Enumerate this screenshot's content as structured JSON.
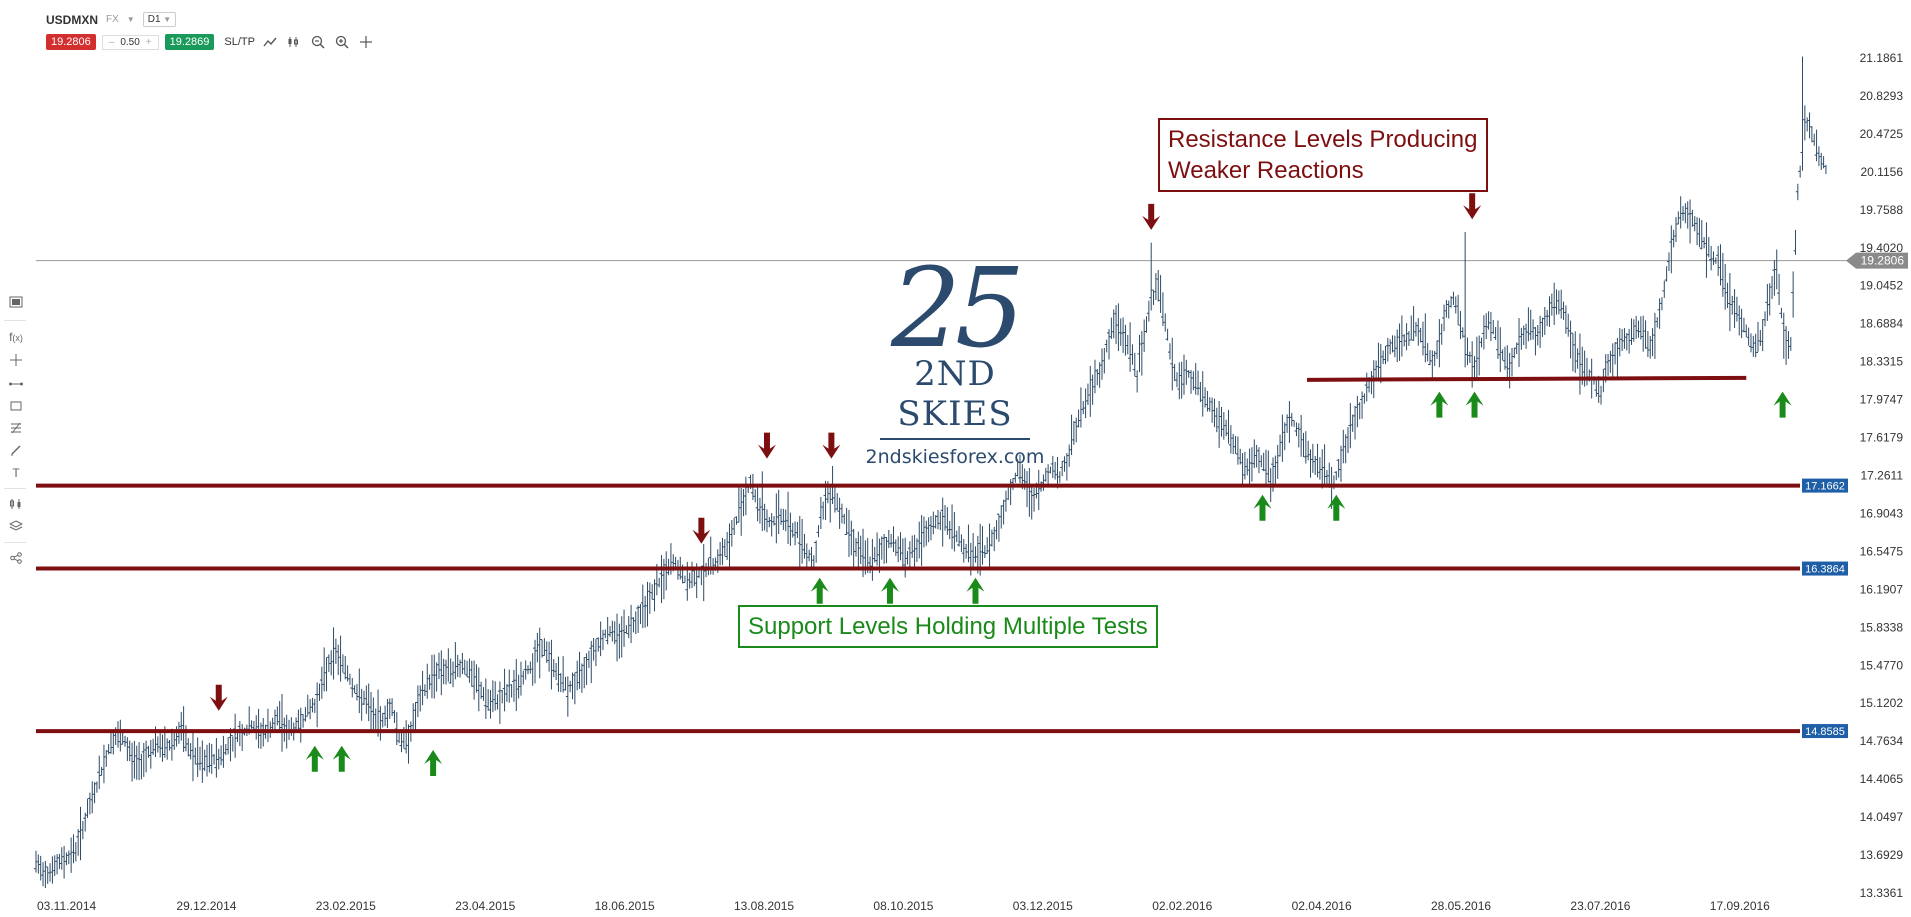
{
  "header": {
    "symbol": "USDMXN",
    "market": "FX",
    "timeframe": "D1",
    "bid": "19.2806",
    "spread": "0.50",
    "ask": "19.2869",
    "sltp": "SL/TP",
    "minus": "–",
    "plus": "+"
  },
  "toolbar_icons": [
    "line-chart-icon",
    "candles-icon",
    "zoom-out-icon",
    "zoom-in-icon",
    "crosshair-icon"
  ],
  "left_tools": [
    "layout-icon",
    "function-icon",
    "crosshair-icon",
    "trend-line-icon",
    "rectangle-icon",
    "fibonacci-icon",
    "pencil-icon",
    "text-icon",
    "indicator-icon",
    "layers-icon",
    "share-icon"
  ],
  "annotations": {
    "resistance_line1": "Resistance Levels Producing",
    "resistance_line2": "Weaker Reactions",
    "support": "Support Levels Holding Multiple Tests"
  },
  "logo": {
    "mark": "25",
    "name": "2ND SKIES",
    "url": "2ndskiesforex.com"
  },
  "colors": {
    "resistance": "#7d0f10",
    "support": "#1a8a1a",
    "candles": "#2c4a66",
    "level_label": "#1e5fa8",
    "current_price": "#8a8a8a"
  },
  "chart_data": {
    "type": "line",
    "title": "",
    "ylim": [
      13.3361,
      21.1861
    ],
    "yticks": [
      "21.1861",
      "20.8293",
      "20.4725",
      "20.1156",
      "19.7588",
      "19.4020",
      "19.0452",
      "18.6884",
      "18.3315",
      "17.9747",
      "17.6179",
      "17.2611",
      "16.9043",
      "16.5475",
      "16.1907",
      "15.8338",
      "15.4770",
      "15.1202",
      "14.7634",
      "14.4065",
      "14.0497",
      "13.6929",
      "13.3361"
    ],
    "xticks": [
      "03.11.2014",
      "29.12.2014",
      "23.02.2015",
      "23.04.2015",
      "18.06.2015",
      "13.08.2015",
      "08.10.2015",
      "03.12.2015",
      "02.02.2016",
      "02.04.2016",
      "28.05.2016",
      "23.07.2016",
      "17.09.2016"
    ],
    "current_price": 19.2806,
    "current_price_label": "19.2806",
    "levels": [
      {
        "value": 17.1662,
        "label": "17.1662"
      },
      {
        "value": 16.3864,
        "label": "16.3864"
      },
      {
        "value": 14.8585,
        "label": "14.8585"
      }
    ],
    "support_segment": {
      "value": 18.17,
      "from_index": 1085,
      "to_index": 1460
    },
    "price_series": [
      [
        0,
        13.6
      ],
      [
        5,
        13.55
      ],
      [
        10,
        13.54
      ],
      [
        16,
        13.57
      ],
      [
        22,
        13.64
      ],
      [
        28,
        13.68
      ],
      [
        34,
        13.75
      ],
      [
        40,
        13.95
      ],
      [
        46,
        14.15
      ],
      [
        52,
        14.35
      ],
      [
        58,
        14.55
      ],
      [
        64,
        14.75
      ],
      [
        70,
        14.8
      ],
      [
        76,
        14.75
      ],
      [
        82,
        14.6
      ],
      [
        88,
        14.55
      ],
      [
        94,
        14.65
      ],
      [
        100,
        14.7
      ],
      [
        106,
        14.72
      ],
      [
        112,
        14.7
      ],
      [
        118,
        14.78
      ],
      [
        124,
        14.88
      ],
      [
        130,
        14.7
      ],
      [
        136,
        14.6
      ],
      [
        142,
        14.55
      ],
      [
        148,
        14.58
      ],
      [
        154,
        14.6
      ],
      [
        160,
        14.65
      ],
      [
        166,
        14.75
      ],
      [
        172,
        14.82
      ],
      [
        178,
        14.85
      ],
      [
        184,
        14.92
      ],
      [
        190,
        14.85
      ],
      [
        196,
        14.85
      ],
      [
        202,
        14.9
      ],
      [
        208,
        15.0
      ],
      [
        214,
        14.85
      ],
      [
        220,
        14.88
      ],
      [
        226,
        14.95
      ],
      [
        232,
        15.05
      ],
      [
        238,
        15.1
      ],
      [
        244,
        15.3
      ],
      [
        250,
        15.5
      ],
      [
        256,
        15.6
      ],
      [
        262,
        15.5
      ],
      [
        268,
        15.35
      ],
      [
        274,
        15.2
      ],
      [
        280,
        15.15
      ],
      [
        286,
        15.05
      ],
      [
        292,
        14.95
      ],
      [
        298,
        15.0
      ],
      [
        304,
        15.1
      ],
      [
        310,
        14.8
      ],
      [
        316,
        14.75
      ],
      [
        322,
        14.95
      ],
      [
        328,
        15.15
      ],
      [
        334,
        15.3
      ],
      [
        340,
        15.4
      ],
      [
        346,
        15.45
      ],
      [
        352,
        15.4
      ],
      [
        358,
        15.45
      ],
      [
        364,
        15.5
      ],
      [
        370,
        15.4
      ],
      [
        376,
        15.3
      ],
      [
        382,
        15.2
      ],
      [
        388,
        15.1
      ],
      [
        394,
        15.15
      ],
      [
        400,
        15.2
      ],
      [
        406,
        15.25
      ],
      [
        412,
        15.3
      ],
      [
        418,
        15.4
      ],
      [
        424,
        15.5
      ],
      [
        430,
        15.65
      ],
      [
        436,
        15.6
      ],
      [
        442,
        15.45
      ],
      [
        448,
        15.35
      ],
      [
        454,
        15.25
      ],
      [
        460,
        15.3
      ],
      [
        466,
        15.4
      ],
      [
        472,
        15.55
      ],
      [
        478,
        15.65
      ],
      [
        484,
        15.75
      ],
      [
        490,
        15.8
      ],
      [
        496,
        15.75
      ],
      [
        502,
        15.8
      ],
      [
        508,
        15.85
      ],
      [
        514,
        15.95
      ],
      [
        520,
        16.05
      ],
      [
        526,
        16.15
      ],
      [
        532,
        16.25
      ],
      [
        538,
        16.35
      ],
      [
        544,
        16.45
      ],
      [
        550,
        16.35
      ],
      [
        556,
        16.25
      ],
      [
        562,
        16.3
      ],
      [
        568,
        16.35
      ],
      [
        574,
        16.4
      ],
      [
        580,
        16.45
      ],
      [
        586,
        16.55
      ],
      [
        592,
        16.6
      ],
      [
        598,
        16.85
      ],
      [
        604,
        17.05
      ],
      [
        610,
        17.2
      ],
      [
        616,
        17.0
      ],
      [
        622,
        16.85
      ],
      [
        628,
        16.8
      ],
      [
        634,
        16.9
      ],
      [
        640,
        16.85
      ],
      [
        646,
        16.75
      ],
      [
        652,
        16.7
      ],
      [
        658,
        16.55
      ],
      [
        664,
        16.45
      ],
      [
        670,
        16.85
      ],
      [
        676,
        17.1
      ],
      [
        682,
        17.05
      ],
      [
        688,
        16.9
      ],
      [
        694,
        16.75
      ],
      [
        700,
        16.6
      ],
      [
        706,
        16.5
      ],
      [
        712,
        16.45
      ],
      [
        718,
        16.5
      ],
      [
        724,
        16.6
      ],
      [
        730,
        16.65
      ],
      [
        736,
        16.6
      ],
      [
        742,
        16.5
      ],
      [
        748,
        16.55
      ],
      [
        754,
        16.6
      ],
      [
        760,
        16.7
      ],
      [
        766,
        16.8
      ],
      [
        772,
        16.85
      ],
      [
        778,
        16.8
      ],
      [
        784,
        16.75
      ],
      [
        790,
        16.6
      ],
      [
        796,
        16.55
      ],
      [
        802,
        16.5
      ],
      [
        808,
        16.55
      ],
      [
        814,
        16.6
      ],
      [
        820,
        16.75
      ],
      [
        826,
        16.95
      ],
      [
        832,
        17.15
      ],
      [
        838,
        17.3
      ],
      [
        844,
        17.2
      ],
      [
        850,
        17.05
      ],
      [
        856,
        17.1
      ],
      [
        862,
        17.25
      ],
      [
        868,
        17.35
      ],
      [
        874,
        17.25
      ],
      [
        880,
        17.4
      ],
      [
        886,
        17.65
      ],
      [
        892,
        17.85
      ],
      [
        898,
        18.0
      ],
      [
        904,
        18.15
      ],
      [
        910,
        18.3
      ],
      [
        916,
        18.55
      ],
      [
        922,
        18.7
      ],
      [
        928,
        18.6
      ],
      [
        934,
        18.45
      ],
      [
        940,
        18.2
      ],
      [
        946,
        18.55
      ],
      [
        952,
        18.9
      ],
      [
        958,
        19.1
      ],
      [
        964,
        18.7
      ],
      [
        970,
        18.3
      ],
      [
        976,
        18.1
      ],
      [
        982,
        18.25
      ],
      [
        988,
        18.15
      ],
      [
        994,
        18.05
      ],
      [
        1000,
        17.95
      ],
      [
        1006,
        17.85
      ],
      [
        1012,
        17.75
      ],
      [
        1018,
        17.65
      ],
      [
        1024,
        17.55
      ],
      [
        1030,
        17.35
      ],
      [
        1036,
        17.3
      ],
      [
        1042,
        17.45
      ],
      [
        1048,
        17.35
      ],
      [
        1054,
        17.25
      ],
      [
        1060,
        17.4
      ],
      [
        1066,
        17.7
      ],
      [
        1072,
        17.8
      ],
      [
        1078,
        17.65
      ],
      [
        1084,
        17.5
      ],
      [
        1090,
        17.4
      ],
      [
        1096,
        17.35
      ],
      [
        1102,
        17.25
      ],
      [
        1108,
        17.2
      ],
      [
        1114,
        17.4
      ],
      [
        1120,
        17.6
      ],
      [
        1126,
        17.8
      ],
      [
        1132,
        17.95
      ],
      [
        1138,
        18.1
      ],
      [
        1144,
        18.25
      ],
      [
        1150,
        18.35
      ],
      [
        1156,
        18.45
      ],
      [
        1162,
        18.5
      ],
      [
        1168,
        18.55
      ],
      [
        1174,
        18.6
      ],
      [
        1180,
        18.65
      ],
      [
        1186,
        18.5
      ],
      [
        1192,
        18.3
      ],
      [
        1198,
        18.5
      ],
      [
        1204,
        18.8
      ],
      [
        1210,
        18.95
      ],
      [
        1216,
        18.7
      ],
      [
        1222,
        18.4
      ],
      [
        1228,
        18.3
      ],
      [
        1234,
        18.5
      ],
      [
        1240,
        18.7
      ],
      [
        1246,
        18.6
      ],
      [
        1252,
        18.4
      ],
      [
        1258,
        18.3
      ],
      [
        1264,
        18.45
      ],
      [
        1270,
        18.6
      ],
      [
        1276,
        18.65
      ],
      [
        1282,
        18.55
      ],
      [
        1288,
        18.7
      ],
      [
        1294,
        18.85
      ],
      [
        1300,
        18.9
      ],
      [
        1306,
        18.75
      ],
      [
        1312,
        18.5
      ],
      [
        1318,
        18.3
      ],
      [
        1324,
        18.2
      ],
      [
        1330,
        18.15
      ],
      [
        1336,
        18.05
      ],
      [
        1342,
        18.3
      ],
      [
        1348,
        18.4
      ],
      [
        1354,
        18.5
      ],
      [
        1360,
        18.55
      ],
      [
        1366,
        18.65
      ],
      [
        1372,
        18.6
      ],
      [
        1378,
        18.45
      ],
      [
        1384,
        18.7
      ],
      [
        1390,
        19.0
      ],
      [
        1396,
        19.4
      ],
      [
        1402,
        19.65
      ],
      [
        1408,
        19.75
      ],
      [
        1414,
        19.7
      ],
      [
        1420,
        19.55
      ],
      [
        1426,
        19.4
      ],
      [
        1432,
        19.3
      ],
      [
        1438,
        19.25
      ],
      [
        1444,
        18.95
      ],
      [
        1450,
        18.85
      ],
      [
        1456,
        18.7
      ],
      [
        1462,
        18.55
      ],
      [
        1468,
        18.45
      ],
      [
        1474,
        18.6
      ],
      [
        1480,
        18.95
      ],
      [
        1486,
        19.2
      ],
      [
        1492,
        18.6
      ],
      [
        1498,
        18.5
      ],
      [
        1504,
        19.9
      ],
      [
        1510,
        20.6
      ],
      [
        1516,
        20.5
      ],
      [
        1522,
        20.25
      ],
      [
        1528,
        20.15
      ]
    ],
    "spikes": [
      {
        "index": 952,
        "high": 19.45
      },
      {
        "index": 1220,
        "high": 19.55
      },
      {
        "index": 1508,
        "high": 21.2
      },
      {
        "index": 680,
        "high": 17.35
      },
      {
        "index": 620,
        "high": 17.3
      }
    ],
    "resistance_arrows": [
      {
        "index": 156,
        "price": 15.05
      },
      {
        "index": 568,
        "price": 16.62
      },
      {
        "index": 624,
        "price": 17.42
      },
      {
        "index": 679,
        "price": 17.42
      },
      {
        "index": 952,
        "price": 19.57
      },
      {
        "index": 1226,
        "price": 19.67
      }
    ],
    "support_arrows": [
      {
        "index": 238,
        "price": 14.72
      },
      {
        "index": 261,
        "price": 14.72
      },
      {
        "index": 339,
        "price": 14.68
      },
      {
        "index": 669,
        "price": 16.3
      },
      {
        "index": 729,
        "price": 16.3
      },
      {
        "index": 802,
        "price": 16.3
      },
      {
        "index": 1047,
        "price": 17.08
      },
      {
        "index": 1110,
        "price": 17.08
      },
      {
        "index": 1198,
        "price": 18.05
      },
      {
        "index": 1228,
        "price": 18.05
      },
      {
        "index": 1491,
        "price": 18.05
      }
    ]
  }
}
